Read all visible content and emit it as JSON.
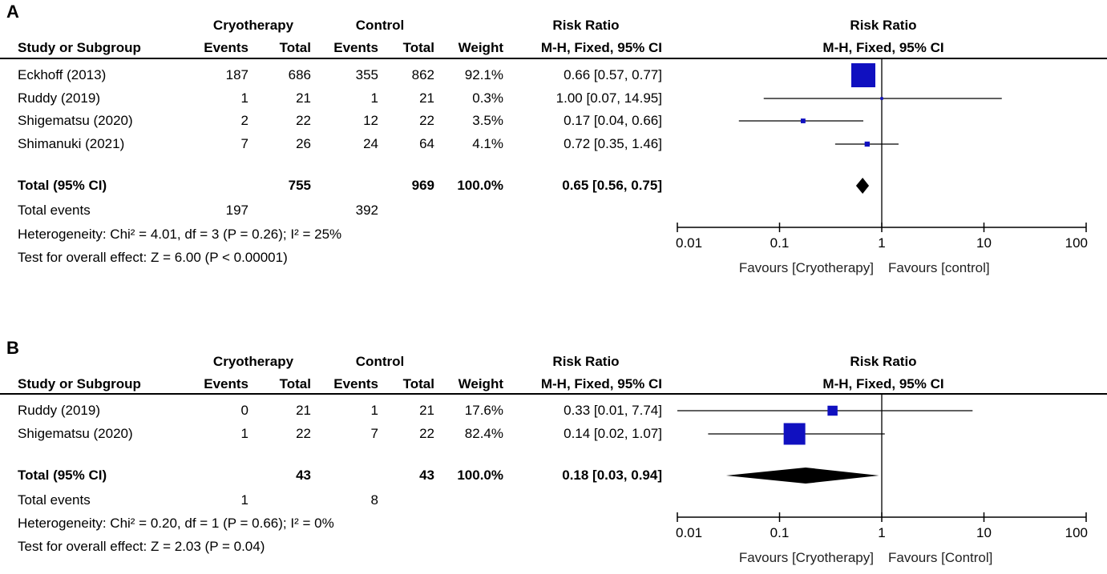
{
  "headers": {
    "study": "Study or Subgroup",
    "events": "Events",
    "total": "Total",
    "weight": "Weight",
    "method": "M-H, Fixed, 95% CI"
  },
  "chart_data": [
    {
      "type": "forest",
      "panel_label": "A",
      "group1": "Cryotherapy",
      "group2": "Control",
      "effect_title": "Risk Ratio",
      "method": "M-H, Fixed, 95% CI",
      "plot_title": "Risk Ratio",
      "plot_method": "M-H, Fixed, 95% CI",
      "studies": [
        {
          "name": "Eckhoff (2013)",
          "e1": "187",
          "n1": "686",
          "e2": "355",
          "n2": "862",
          "weight": "92.1%",
          "ci_text": "0.66 [0.57, 0.77]",
          "rr": 0.66,
          "lo": 0.57,
          "hi": 0.77,
          "w": 92.1
        },
        {
          "name": "Ruddy (2019)",
          "e1": "1",
          "n1": "21",
          "e2": "1",
          "n2": "21",
          "weight": "0.3%",
          "ci_text": "1.00 [0.07, 14.95]",
          "rr": 1.0,
          "lo": 0.07,
          "hi": 14.95,
          "w": 0.3
        },
        {
          "name": "Shigematsu (2020)",
          "e1": "2",
          "n1": "22",
          "e2": "12",
          "n2": "22",
          "weight": "3.5%",
          "ci_text": "0.17 [0.04, 0.66]",
          "rr": 0.17,
          "lo": 0.04,
          "hi": 0.66,
          "w": 3.5
        },
        {
          "name": "Shimanuki (2021)",
          "e1": "7",
          "n1": "26",
          "e2": "24",
          "n2": "64",
          "weight": "4.1%",
          "ci_text": "0.72 [0.35, 1.46]",
          "rr": 0.72,
          "lo": 0.35,
          "hi": 1.46,
          "w": 4.1
        }
      ],
      "total": {
        "name": "Total (95% CI)",
        "n1": "755",
        "n2": "969",
        "weight": "100.0%",
        "ci_text": "0.65 [0.56, 0.75]",
        "rr": 0.65,
        "lo": 0.56,
        "hi": 0.75
      },
      "total_events": {
        "label": "Total events",
        "e1": "197",
        "e2": "392"
      },
      "heterogeneity": "Heterogeneity: Chi² = 4.01, df = 3 (P = 0.26); I² = 25%",
      "overall_effect": "Test for overall effect: Z = 6.00 (P < 0.00001)",
      "axis": {
        "scale": "log",
        "ticks": [
          "0.01",
          "0.1",
          "1",
          "10",
          "100"
        ],
        "xlim": [
          0.01,
          100
        ],
        "null_line": 1
      },
      "favours_left": "Favours [Cryotherapy]",
      "favours_right": "Favours [control]"
    },
    {
      "type": "forest",
      "panel_label": "B",
      "group1": "Cryotherapy",
      "group2": "Control",
      "effect_title": "Risk Ratio",
      "method": "M-H, Fixed, 95% CI",
      "plot_title": "Risk Ratio",
      "plot_method": "M-H, Fixed, 95% CI",
      "studies": [
        {
          "name": "Ruddy (2019)",
          "e1": "0",
          "n1": "21",
          "e2": "1",
          "n2": "21",
          "weight": "17.6%",
          "ci_text": "0.33 [0.01, 7.74]",
          "rr": 0.33,
          "lo": 0.01,
          "hi": 7.74,
          "w": 17.6
        },
        {
          "name": "Shigematsu (2020)",
          "e1": "1",
          "n1": "22",
          "e2": "7",
          "n2": "22",
          "weight": "82.4%",
          "ci_text": "0.14 [0.02, 1.07]",
          "rr": 0.14,
          "lo": 0.02,
          "hi": 1.07,
          "w": 82.4
        }
      ],
      "total": {
        "name": "Total (95% CI)",
        "n1": "43",
        "n2": "43",
        "weight": "100.0%",
        "ci_text": "0.18 [0.03, 0.94]",
        "rr": 0.18,
        "lo": 0.03,
        "hi": 0.94
      },
      "total_events": {
        "label": "Total events",
        "e1": "1",
        "e2": "8"
      },
      "heterogeneity": "Heterogeneity: Chi² = 0.20, df = 1 (P = 0.66); I² = 0%",
      "overall_effect": "Test for overall effect: Z = 2.03 (P = 0.04)",
      "axis": {
        "scale": "log",
        "ticks": [
          "0.01",
          "0.1",
          "1",
          "10",
          "100"
        ],
        "xlim": [
          0.01,
          100
        ],
        "null_line": 1
      },
      "favours_left": "Favours [Cryotherapy]",
      "favours_right": "Favours [Control]"
    }
  ],
  "colors": {
    "square": "#1010c0",
    "diamond": "#000000",
    "line": "#000000"
  }
}
